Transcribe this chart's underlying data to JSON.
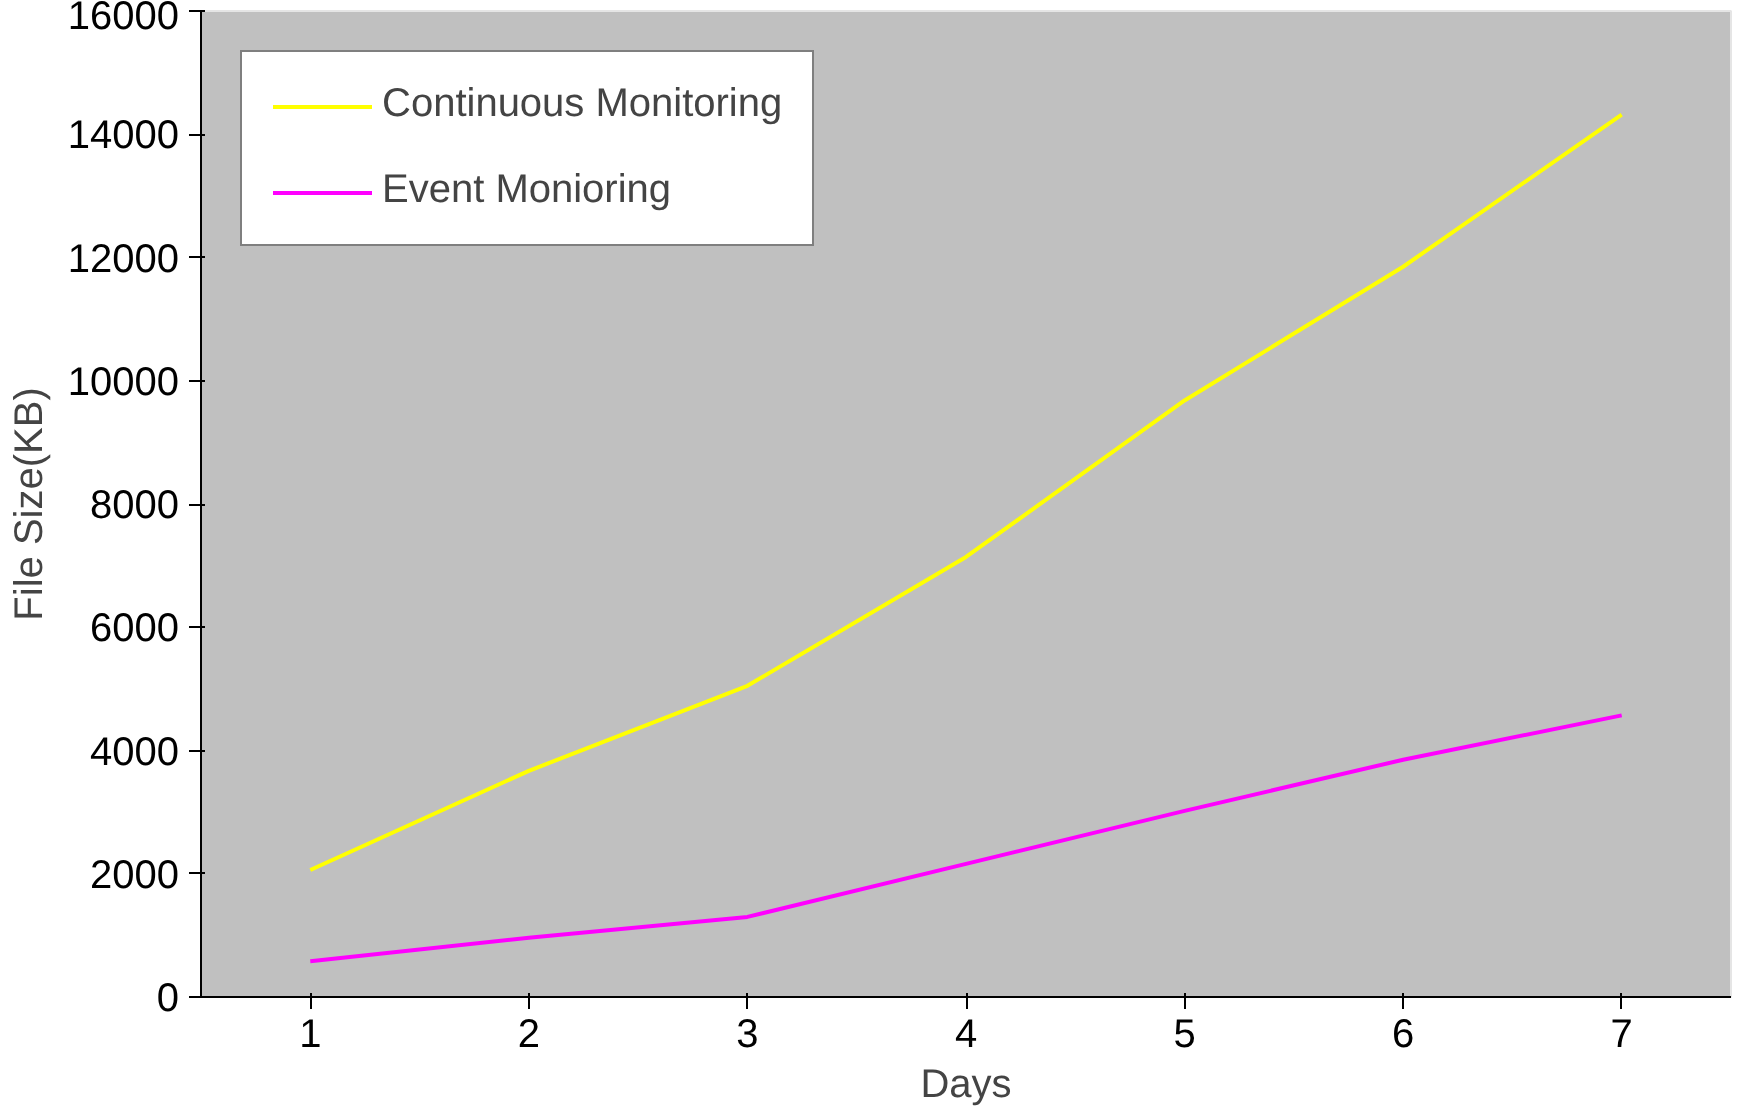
{
  "chart_data": {
    "type": "line",
    "xlabel": "Days",
    "ylabel": "File Size(KB)",
    "categories": [
      "1",
      "2",
      "3",
      "4",
      "5",
      "6",
      "7"
    ],
    "series": [
      {
        "name": "Continuous Monitoring",
        "color": "#ffff00",
        "values": [
          2060,
          3670,
          5050,
          7140,
          9680,
          11850,
          14320
        ]
      },
      {
        "name": "Event Monioring",
        "color": "#ff00ff",
        "values": [
          580,
          960,
          1300,
          2160,
          3020,
          3850,
          4570
        ]
      }
    ],
    "ylim": [
      0,
      16000
    ],
    "yticks": [
      0,
      2000,
      4000,
      6000,
      8000,
      10000,
      12000,
      14000,
      16000
    ],
    "grid": false,
    "legend": "top left",
    "marker": "none"
  }
}
